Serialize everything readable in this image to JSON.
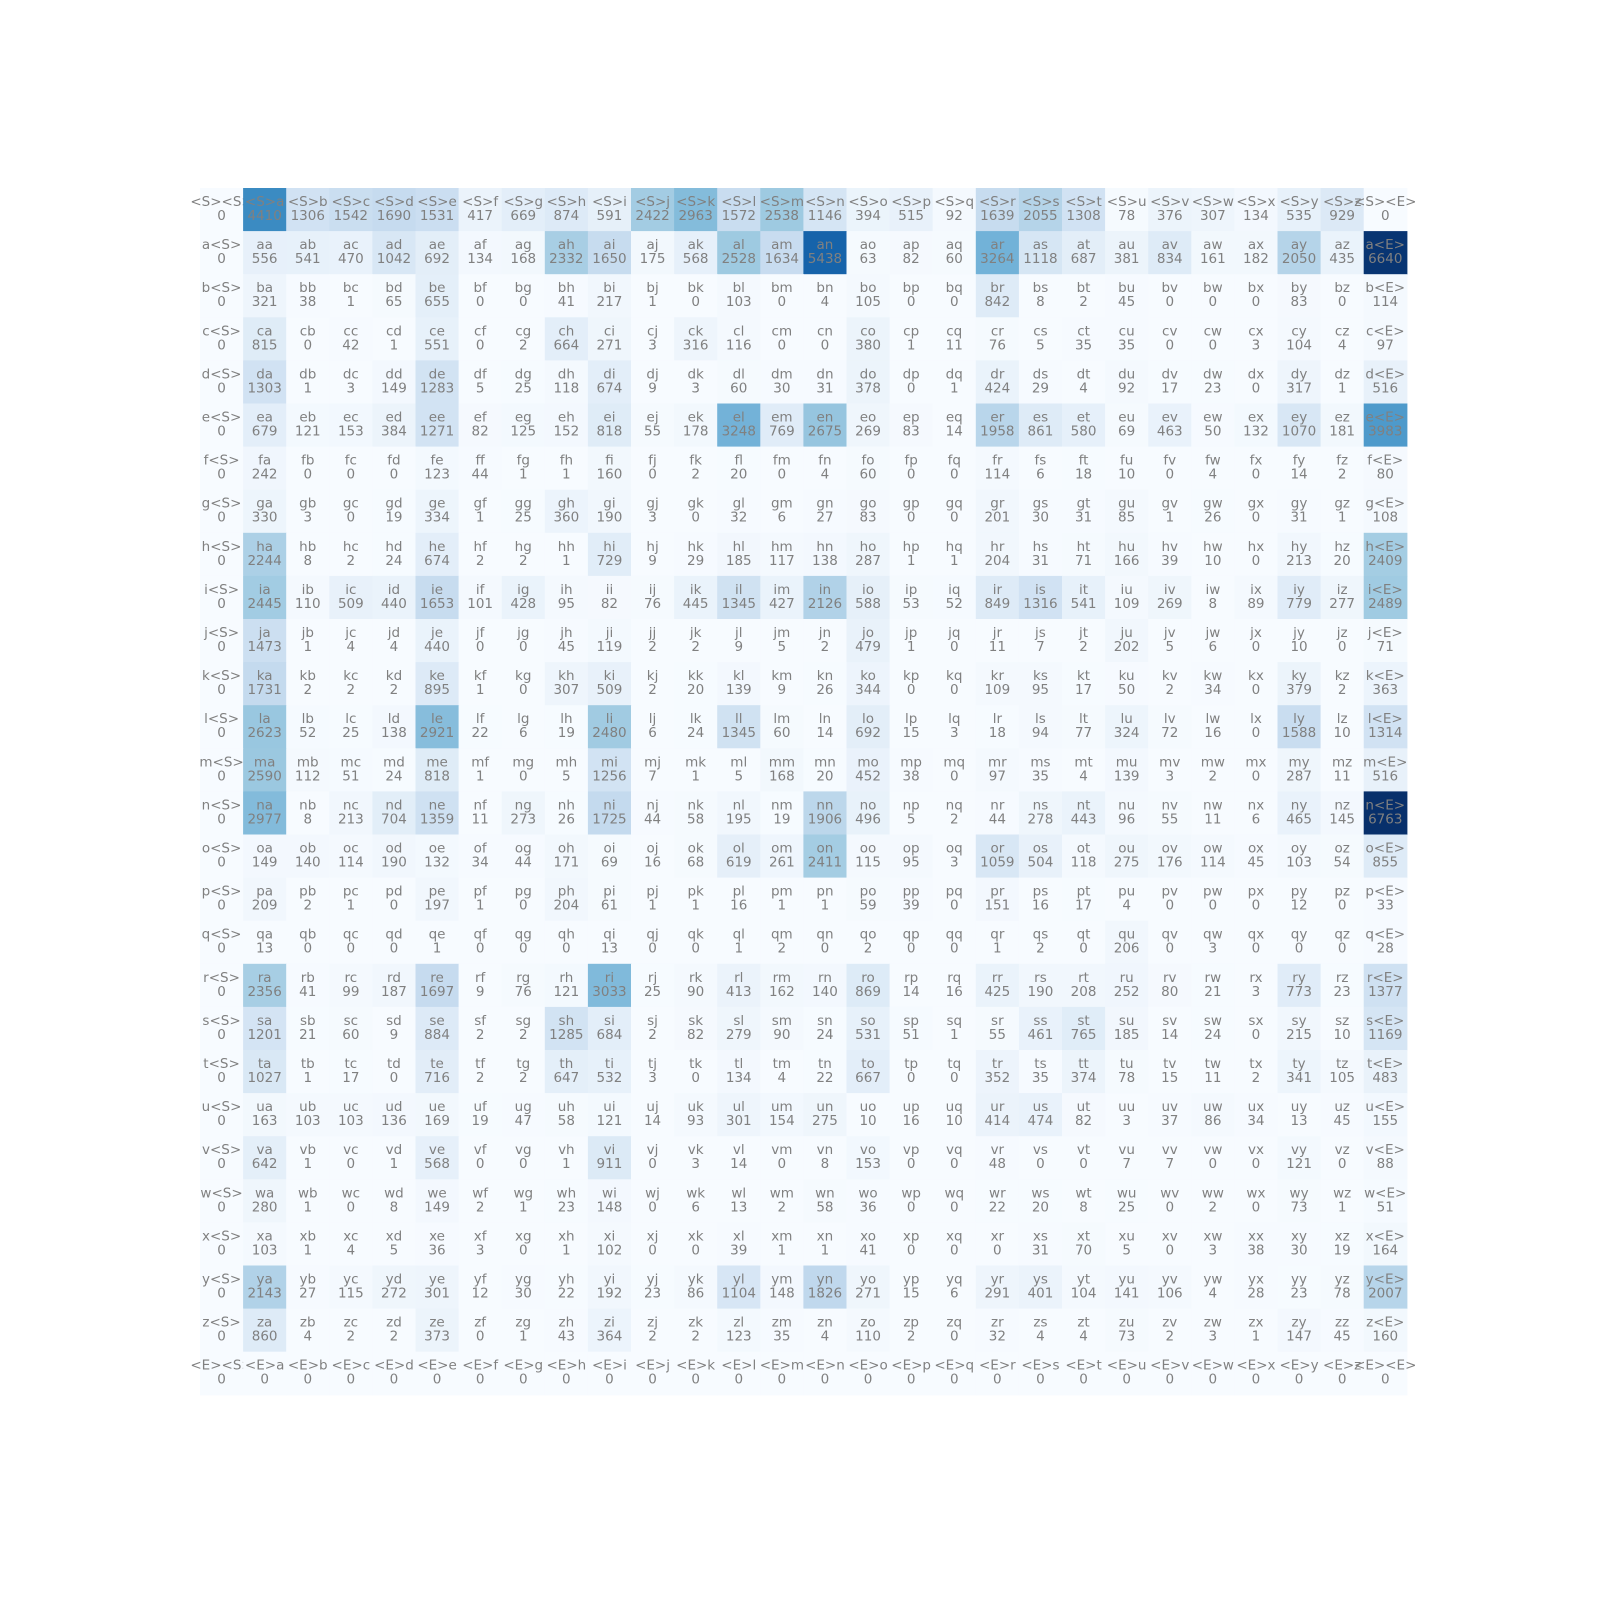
{
  "chart_data": {
    "type": "heatmap",
    "title": "",
    "xlabel": "",
    "ylabel": "",
    "axes_visible": false,
    "colormap": "Blues",
    "colormap_stops": [
      "#f7fbff",
      "#deebf7",
      "#c6dbef",
      "#9ecae1",
      "#6baed6",
      "#4292c6",
      "#2171b5",
      "#08519c",
      "#08306b"
    ],
    "text_color": "#808080",
    "tokens": [
      "<S>",
      "a",
      "b",
      "c",
      "d",
      "e",
      "f",
      "g",
      "h",
      "i",
      "j",
      "k",
      "l",
      "m",
      "n",
      "o",
      "p",
      "q",
      "r",
      "s",
      "t",
      "u",
      "v",
      "w",
      "x",
      "y",
      "z",
      "<E>"
    ],
    "row_labels": [
      "<S>",
      "a",
      "b",
      "c",
      "d",
      "e",
      "f",
      "g",
      "h",
      "i",
      "j",
      "k",
      "l",
      "m",
      "n",
      "o",
      "p",
      "q",
      "r",
      "s",
      "t",
      "u",
      "v",
      "w",
      "x",
      "y",
      "z",
      "<E>"
    ],
    "col_labels": [
      "<S>",
      "a",
      "b",
      "c",
      "d",
      "e",
      "f",
      "g",
      "h",
      "i",
      "j",
      "k",
      "l",
      "m",
      "n",
      "o",
      "p",
      "q",
      "r",
      "s",
      "t",
      "u",
      "v",
      "w",
      "x",
      "y",
      "z",
      "<E>"
    ],
    "values": [
      [
        0,
        4410,
        1306,
        1542,
        1690,
        1531,
        417,
        669,
        874,
        591,
        2422,
        2963,
        1572,
        2538,
        1146,
        394,
        515,
        92,
        1639,
        2055,
        1308,
        78,
        376,
        307,
        134,
        535,
        929,
        0
      ],
      [
        0,
        556,
        541,
        470,
        1042,
        692,
        134,
        168,
        2332,
        1650,
        175,
        568,
        2528,
        1634,
        5438,
        63,
        82,
        60,
        3264,
        1118,
        687,
        381,
        834,
        161,
        182,
        2050,
        435,
        6640
      ],
      [
        0,
        321,
        38,
        1,
        65,
        655,
        0,
        0,
        41,
        217,
        1,
        0,
        103,
        0,
        4,
        105,
        0,
        0,
        842,
        8,
        2,
        45,
        0,
        0,
        0,
        83,
        0,
        114
      ],
      [
        0,
        815,
        0,
        42,
        1,
        551,
        0,
        2,
        664,
        271,
        3,
        316,
        116,
        0,
        0,
        380,
        1,
        11,
        76,
        5,
        35,
        35,
        0,
        0,
        3,
        104,
        4,
        97
      ],
      [
        0,
        1303,
        1,
        3,
        149,
        1283,
        5,
        25,
        118,
        674,
        9,
        3,
        60,
        30,
        31,
        378,
        0,
        1,
        424,
        29,
        4,
        92,
        17,
        23,
        0,
        317,
        1,
        516
      ],
      [
        0,
        679,
        121,
        153,
        384,
        1271,
        82,
        125,
        152,
        818,
        55,
        178,
        3248,
        769,
        2675,
        269,
        83,
        14,
        1958,
        861,
        580,
        69,
        463,
        50,
        132,
        1070,
        181,
        3983
      ],
      [
        0,
        242,
        0,
        0,
        0,
        123,
        44,
        1,
        1,
        160,
        0,
        2,
        20,
        0,
        4,
        60,
        0,
        0,
        114,
        6,
        18,
        10,
        0,
        4,
        0,
        14,
        2,
        80
      ],
      [
        0,
        330,
        3,
        0,
        19,
        334,
        1,
        25,
        360,
        190,
        3,
        0,
        32,
        6,
        27,
        83,
        0,
        0,
        201,
        30,
        31,
        85,
        1,
        26,
        0,
        31,
        1,
        108
      ],
      [
        0,
        2244,
        8,
        2,
        24,
        674,
        2,
        2,
        1,
        729,
        9,
        29,
        185,
        117,
        138,
        287,
        1,
        1,
        204,
        31,
        71,
        166,
        39,
        10,
        0,
        213,
        20,
        2409
      ],
      [
        0,
        2445,
        110,
        509,
        440,
        1653,
        101,
        428,
        95,
        82,
        76,
        445,
        1345,
        427,
        2126,
        588,
        53,
        52,
        849,
        1316,
        541,
        109,
        269,
        8,
        89,
        779,
        277,
        2489
      ],
      [
        0,
        1473,
        1,
        4,
        4,
        440,
        0,
        0,
        45,
        119,
        2,
        2,
        9,
        5,
        2,
        479,
        1,
        0,
        11,
        7,
        2,
        202,
        5,
        6,
        0,
        10,
        0,
        71
      ],
      [
        0,
        1731,
        2,
        2,
        2,
        895,
        1,
        0,
        307,
        509,
        2,
        20,
        139,
        9,
        26,
        344,
        0,
        0,
        109,
        95,
        17,
        50,
        2,
        34,
        0,
        379,
        2,
        363
      ],
      [
        0,
        2623,
        52,
        25,
        138,
        2921,
        22,
        6,
        19,
        2480,
        6,
        24,
        1345,
        60,
        14,
        692,
        15,
        3,
        18,
        94,
        77,
        324,
        72,
        16,
        0,
        1588,
        10,
        1314
      ],
      [
        0,
        2590,
        112,
        51,
        24,
        818,
        1,
        0,
        5,
        1256,
        7,
        1,
        5,
        168,
        20,
        452,
        38,
        0,
        97,
        35,
        4,
        139,
        3,
        2,
        0,
        287,
        11,
        516
      ],
      [
        0,
        2977,
        8,
        213,
        704,
        1359,
        11,
        273,
        26,
        1725,
        44,
        58,
        195,
        19,
        1906,
        496,
        5,
        2,
        44,
        278,
        443,
        96,
        55,
        11,
        6,
        465,
        145,
        6763
      ],
      [
        0,
        149,
        140,
        114,
        190,
        132,
        34,
        44,
        171,
        69,
        16,
        68,
        619,
        261,
        2411,
        115,
        95,
        3,
        1059,
        504,
        118,
        275,
        176,
        114,
        45,
        103,
        54,
        855
      ],
      [
        0,
        209,
        2,
        1,
        0,
        197,
        1,
        0,
        204,
        61,
        1,
        1,
        16,
        1,
        1,
        59,
        39,
        0,
        151,
        16,
        17,
        4,
        0,
        0,
        0,
        12,
        0,
        33
      ],
      [
        0,
        13,
        0,
        0,
        0,
        1,
        0,
        0,
        0,
        13,
        0,
        0,
        1,
        2,
        0,
        2,
        0,
        0,
        1,
        2,
        0,
        206,
        0,
        3,
        0,
        0,
        0,
        28
      ],
      [
        0,
        2356,
        41,
        99,
        187,
        1697,
        9,
        76,
        121,
        3033,
        25,
        90,
        413,
        162,
        140,
        869,
        14,
        16,
        425,
        190,
        208,
        252,
        80,
        21,
        3,
        773,
        23,
        1377
      ],
      [
        0,
        1201,
        21,
        60,
        9,
        884,
        2,
        2,
        1285,
        684,
        2,
        82,
        279,
        90,
        24,
        531,
        51,
        1,
        55,
        461,
        765,
        185,
        14,
        24,
        0,
        215,
        10,
        1169
      ],
      [
        0,
        1027,
        1,
        17,
        0,
        716,
        2,
        2,
        647,
        532,
        3,
        0,
        134,
        4,
        22,
        667,
        0,
        0,
        352,
        35,
        374,
        78,
        15,
        11,
        2,
        341,
        105,
        483
      ],
      [
        0,
        163,
        103,
        103,
        136,
        169,
        19,
        47,
        58,
        121,
        14,
        93,
        301,
        154,
        275,
        10,
        16,
        10,
        414,
        474,
        82,
        3,
        37,
        86,
        34,
        13,
        45,
        155
      ],
      [
        0,
        642,
        1,
        0,
        1,
        568,
        0,
        0,
        1,
        911,
        0,
        3,
        14,
        0,
        8,
        153,
        0,
        0,
        48,
        0,
        0,
        7,
        7,
        0,
        0,
        121,
        0,
        88
      ],
      [
        0,
        280,
        1,
        0,
        8,
        149,
        2,
        1,
        23,
        148,
        0,
        6,
        13,
        2,
        58,
        36,
        0,
        0,
        22,
        20,
        8,
        25,
        0,
        2,
        0,
        73,
        1,
        51
      ],
      [
        0,
        103,
        1,
        4,
        5,
        36,
        3,
        0,
        1,
        102,
        0,
        0,
        39,
        1,
        1,
        41,
        0,
        0,
        0,
        31,
        70,
        5,
        0,
        3,
        38,
        30,
        19,
        164
      ],
      [
        0,
        2143,
        27,
        115,
        272,
        301,
        12,
        30,
        22,
        192,
        23,
        86,
        1104,
        148,
        1826,
        271,
        15,
        6,
        291,
        401,
        104,
        141,
        106,
        4,
        28,
        23,
        78,
        2007
      ],
      [
        0,
        860,
        4,
        2,
        2,
        373,
        0,
        1,
        43,
        364,
        2,
        2,
        123,
        35,
        4,
        110,
        2,
        0,
        32,
        4,
        4,
        73,
        2,
        3,
        1,
        147,
        45,
        160
      ],
      [
        0,
        0,
        0,
        0,
        0,
        0,
        0,
        0,
        0,
        0,
        0,
        0,
        0,
        0,
        0,
        0,
        0,
        0,
        0,
        0,
        0,
        0,
        0,
        0,
        0,
        0,
        0,
        0
      ]
    ],
    "vmin": 0,
    "vmax": 6763
  }
}
